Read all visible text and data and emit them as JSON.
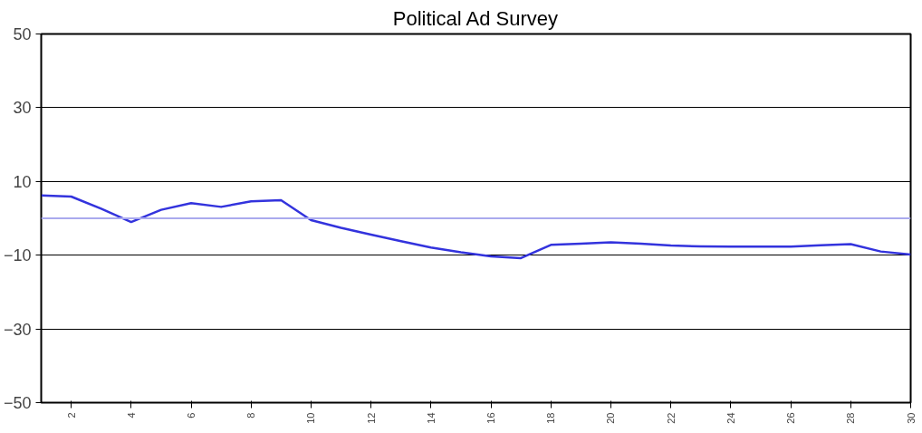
{
  "chart_data": {
    "type": "line",
    "title": "Political Ad Survey",
    "x": [
      1,
      2,
      3,
      4,
      5,
      6,
      7,
      8,
      9,
      10,
      11,
      12,
      13,
      14,
      15,
      16,
      17,
      18,
      19,
      20,
      21,
      22,
      23,
      24,
      25,
      26,
      27,
      28,
      29,
      30
    ],
    "series": [
      {
        "color": "#3333dd",
        "values": [
          6.2,
          5.9,
          2.6,
          -1.0,
          2.3,
          4.1,
          3.1,
          4.6,
          4.9,
          -0.5,
          -2.6,
          -4.4,
          -6.2,
          -7.9,
          -9.2,
          -10.3,
          -10.8,
          -7.2,
          -6.9,
          -6.5,
          -6.9,
          -7.4,
          -7.6,
          -7.7,
          -7.7,
          -7.7,
          -7.3,
          -7.0,
          -9.0,
          -9.8
        ]
      }
    ],
    "xlim": [
      1,
      30
    ],
    "xticks": [
      2,
      4,
      6,
      8,
      10,
      12,
      14,
      16,
      18,
      20,
      22,
      24,
      26,
      28,
      30
    ],
    "ylim": [
      -50,
      50
    ],
    "yticks": [
      -50,
      -30,
      -10,
      10,
      30,
      50
    ],
    "grid": "y",
    "marker": "none",
    "line_style": "solid",
    "ref_lines": [
      {
        "axis": "y",
        "value": 0,
        "color": "#aaaaee"
      }
    ]
  }
}
